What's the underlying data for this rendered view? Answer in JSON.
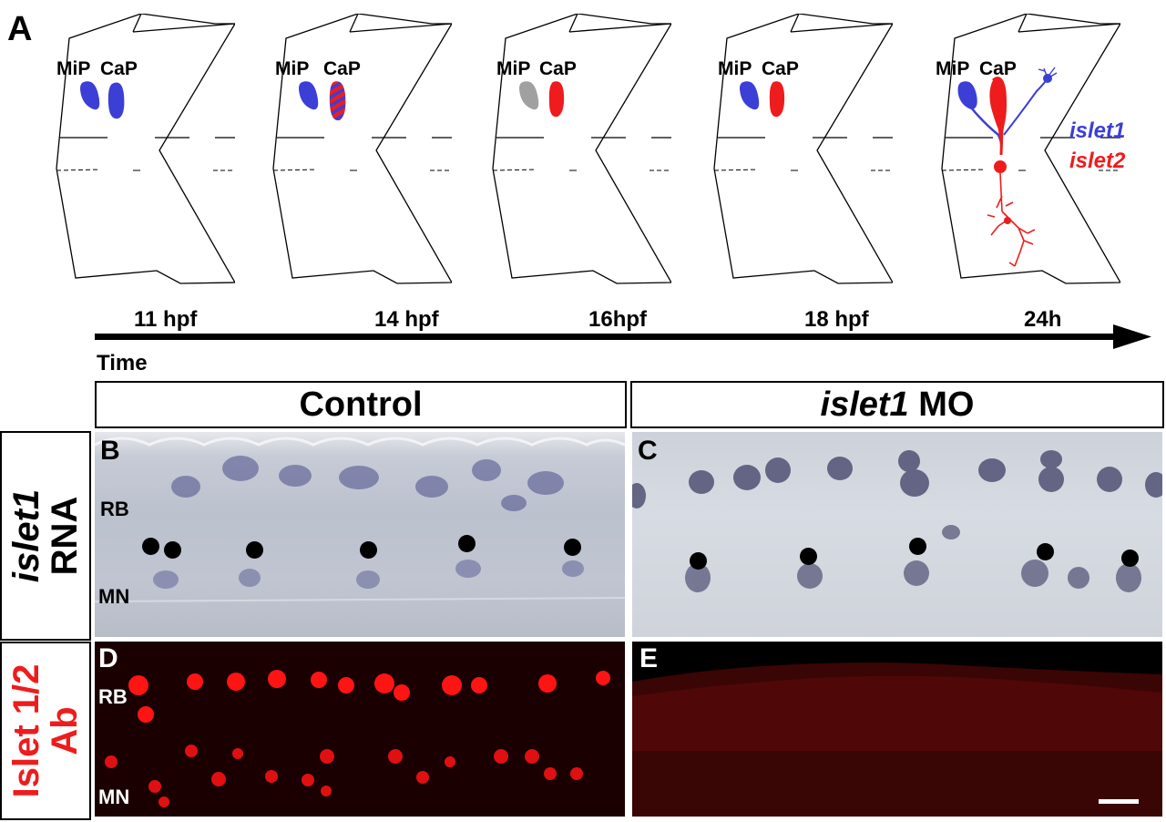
{
  "panel_a": {
    "label": "A",
    "stages": [
      {
        "time": "11 hpf",
        "mip": "MiP",
        "cap": "CaP"
      },
      {
        "time": "14 hpf",
        "mip": "MiP",
        "cap": "CaP"
      },
      {
        "time": "16hpf",
        "mip": "MiP",
        "cap": "CaP"
      },
      {
        "time": "18 hpf",
        "mip": "MiP",
        "cap": "CaP"
      },
      {
        "time": "24h",
        "mip": "MiP",
        "cap": "CaP"
      }
    ],
    "axis_label": "Time",
    "legend": {
      "islet1": "islet1",
      "islet2": "islet2"
    }
  },
  "colors": {
    "islet1": "#3b3fd6",
    "islet2": "#ee1c1c",
    "inactive": "#a0a0a0"
  },
  "columns": {
    "control": "Control",
    "morphant_gene": "islet1",
    "morphant_suffix": " MO"
  },
  "rows": {
    "rna_gene": "islet1",
    "rna_suffix": "RNA",
    "ab_line1": "Islet 1/2",
    "ab_line2": "Ab"
  },
  "panels": {
    "b": {
      "label": "B",
      "rb": "RB",
      "mn": "MN"
    },
    "c": {
      "label": "C"
    },
    "d": {
      "label": "D",
      "rb": "RB",
      "mn": "MN"
    },
    "e": {
      "label": "E"
    }
  }
}
